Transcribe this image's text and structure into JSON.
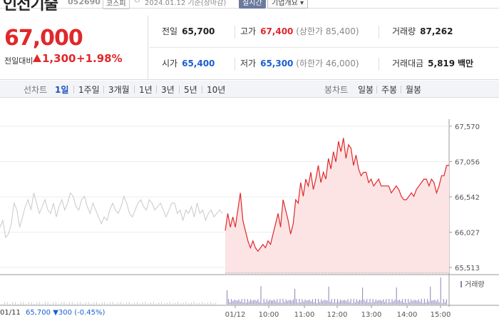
{
  "header": {
    "title": "인선기술",
    "code": "052690",
    "market": "코스피",
    "date_text": "2024.01.12 기준(장마감)",
    "realtime_label": "실시간",
    "company_info_label": "기업개요"
  },
  "summary": {
    "current_price": "67,000",
    "change_label": "전일대비",
    "change_amount": "1,300",
    "change_rate": "+1.98%",
    "prev_close_label": "전일",
    "prev_close": "65,700",
    "high_label": "고가",
    "high": "67,400",
    "upper_limit_label": "(상한가",
    "upper_limit": "85,400)",
    "volume_label": "거래량",
    "volume": "87,262",
    "open_label": "시가",
    "open": "65,400",
    "low_label": "저가",
    "low": "65,300",
    "lower_limit_label": "(하한가",
    "lower_limit": "46,000)",
    "trade_value_label": "거래대금",
    "trade_value": "5,819",
    "trade_value_unit": "백만"
  },
  "toolbar": {
    "line_chart_label": "선차트",
    "periods": [
      "1일",
      "1주일",
      "3개월",
      "1년",
      "3년",
      "5년",
      "10년"
    ],
    "active_period": "1일",
    "candle_label": "봉차트",
    "candles": [
      "일봉",
      "주봉",
      "월봉"
    ]
  },
  "chart_data": {
    "type": "line",
    "y_ticks": [
      "67,570",
      "67,056",
      "66,542",
      "66,027",
      "65,513"
    ],
    "y_values": [
      67570,
      67056,
      66542,
      66027,
      65513
    ],
    "x_ticks": [
      "01/12",
      "10:00",
      "11:00",
      "12:00",
      "13:00",
      "14:00",
      "15:00"
    ],
    "prev_day_label": "01/11",
    "volume_label": "거래량",
    "colors": {
      "today": "#e0282a",
      "today_fill": "#fce4e4",
      "prev": "#c8c8c8",
      "volume": "#8c7fb8"
    },
    "prev_day_series": [
      66100,
      66200,
      65950,
      66000,
      66150,
      66450,
      66350,
      66100,
      66250,
      66400,
      66500,
      66350,
      66600,
      66450,
      66300,
      66400,
      66500,
      66350,
      66300,
      66450,
      66250,
      66400,
      66500,
      66350,
      66450,
      66600,
      66550,
      66400,
      66350,
      66500,
      66550,
      66400,
      66300,
      66450,
      66350,
      66250,
      66150,
      66250,
      66200,
      66350,
      66450,
      66350,
      66300,
      66400,
      66550,
      66450,
      66300,
      66250,
      66350,
      66450,
      66500,
      66400,
      66350,
      66500,
      66450,
      66350,
      66400,
      66450,
      66350,
      66250,
      66350,
      66450,
      66450,
      66300,
      66350,
      66200,
      66350,
      66300,
      66400,
      66250,
      66450,
      66300,
      66350,
      66200,
      66300,
      66350,
      66250,
      66300,
      66350,
      66300
    ],
    "today_series": [
      66050,
      66300,
      66100,
      66250,
      66100,
      66350,
      66600,
      66200,
      66050,
      65900,
      65800,
      65900,
      65800,
      65750,
      65800,
      65850,
      65800,
      65900,
      65850,
      66000,
      66150,
      66300,
      66100,
      66500,
      66350,
      66200,
      66000,
      66150,
      66500,
      66450,
      66750,
      66550,
      66800,
      66700,
      66900,
      66650,
      66800,
      67000,
      66750,
      66900,
      66800,
      67100,
      66950,
      67200,
      67050,
      67350,
      67200,
      67400,
      67100,
      67300,
      67250,
      67000,
      67150,
      66950,
      66850,
      66900,
      66900,
      66750,
      66800,
      66700,
      66750,
      66800,
      66700,
      66700,
      66700,
      66700,
      66600,
      66650,
      66700,
      66650,
      66550,
      66500,
      66500,
      66550,
      66600,
      66550,
      66650,
      66700,
      66750,
      66800,
      66800,
      66700,
      66800,
      66750,
      66600,
      66700,
      66850,
      66850,
      67000,
      67000
    ]
  }
}
